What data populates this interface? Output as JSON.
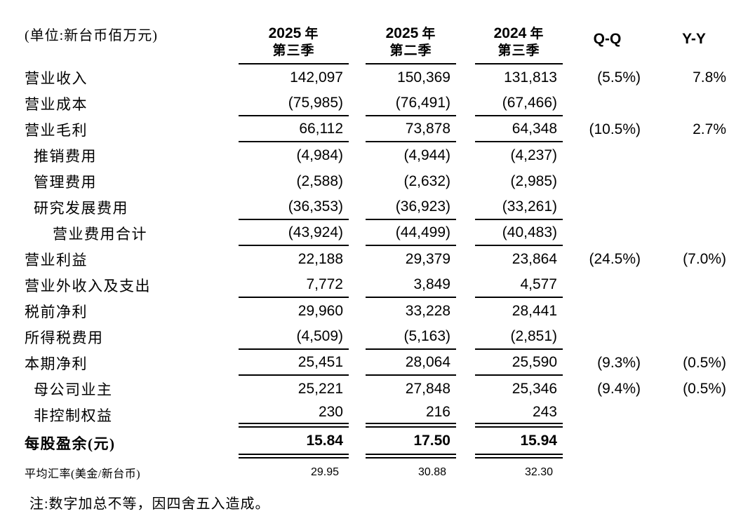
{
  "page": {
    "background": "#ffffff",
    "text_color": "#000000"
  },
  "header": {
    "unit_label": "(单位:新台币佰万元)",
    "columns": [
      {
        "year": "2025",
        "year_suffix": "年",
        "quarter": "第三季"
      },
      {
        "year": "2025",
        "year_suffix": "年",
        "quarter": "第二季"
      },
      {
        "year": "2024",
        "year_suffix": "年",
        "quarter": "第三季"
      }
    ],
    "qq_label": "Q-Q",
    "yy_label": "Y-Y"
  },
  "table": {
    "rows": [
      {
        "label": "营业收入",
        "q3_2025": "142,097",
        "q2_2025": "150,369",
        "q3_2024": "131,813",
        "qq": "(5.5%)",
        "yy": "7.8%",
        "indent": 0,
        "emphasis": false,
        "small": false,
        "rule_below": "none"
      },
      {
        "label": "营业成本",
        "q3_2025": "(75,985)",
        "q2_2025": "(76,491)",
        "q3_2024": "(67,466)",
        "qq": "",
        "yy": "",
        "indent": 0,
        "emphasis": false,
        "small": false,
        "rule_below": "single"
      },
      {
        "label": "营业毛利",
        "q3_2025": "66,112",
        "q2_2025": "73,878",
        "q3_2024": "64,348",
        "qq": "(10.5%)",
        "yy": "2.7%",
        "indent": 0,
        "emphasis": false,
        "small": false,
        "rule_below": "single"
      },
      {
        "label": "推销费用",
        "q3_2025": "(4,984)",
        "q2_2025": "(4,944)",
        "q3_2024": "(4,237)",
        "qq": "",
        "yy": "",
        "indent": 1,
        "emphasis": false,
        "small": false,
        "rule_below": "none"
      },
      {
        "label": "管理费用",
        "q3_2025": "(2,588)",
        "q2_2025": "(2,632)",
        "q3_2024": "(2,985)",
        "qq": "",
        "yy": "",
        "indent": 1,
        "emphasis": false,
        "small": false,
        "rule_below": "none"
      },
      {
        "label": "研究发展费用",
        "q3_2025": "(36,353)",
        "q2_2025": "(36,923)",
        "q3_2024": "(33,261)",
        "qq": "",
        "yy": "",
        "indent": 1,
        "emphasis": false,
        "small": false,
        "rule_below": "single"
      },
      {
        "label": "营业费用合计",
        "q3_2025": "(43,924)",
        "q2_2025": "(44,499)",
        "q3_2024": "(40,483)",
        "qq": "",
        "yy": "",
        "indent": 2,
        "emphasis": false,
        "small": false,
        "rule_below": "single"
      },
      {
        "label": "营业利益",
        "q3_2025": "22,188",
        "q2_2025": "29,379",
        "q3_2024": "23,864",
        "qq": "(24.5%)",
        "yy": "(7.0%)",
        "indent": 0,
        "emphasis": false,
        "small": false,
        "rule_below": "none"
      },
      {
        "label": "营业外收入及支出",
        "q3_2025": "7,772",
        "q2_2025": "3,849",
        "q3_2024": "4,577",
        "qq": "",
        "yy": "",
        "indent": 0,
        "emphasis": false,
        "small": false,
        "rule_below": "single"
      },
      {
        "label": "税前净利",
        "q3_2025": "29,960",
        "q2_2025": "33,228",
        "q3_2024": "28,441",
        "qq": "",
        "yy": "",
        "indent": 0,
        "emphasis": false,
        "small": false,
        "rule_below": "none"
      },
      {
        "label": "所得税费用",
        "q3_2025": "(4,509)",
        "q2_2025": "(5,163)",
        "q3_2024": "(2,851)",
        "qq": "",
        "yy": "",
        "indent": 0,
        "emphasis": false,
        "small": false,
        "rule_below": "single"
      },
      {
        "label": "本期净利",
        "q3_2025": "25,451",
        "q2_2025": "28,064",
        "q3_2024": "25,590",
        "qq": "(9.3%)",
        "yy": "(0.5%)",
        "indent": 0,
        "emphasis": false,
        "small": false,
        "rule_below": "single"
      },
      {
        "label": "母公司业主",
        "q3_2025": "25,221",
        "q2_2025": "27,848",
        "q3_2024": "25,346",
        "qq": "(9.4%)",
        "yy": "(0.5%)",
        "indent": 1,
        "emphasis": false,
        "small": false,
        "rule_below": "none"
      },
      {
        "label": "非控制权益",
        "q3_2025": "230",
        "q2_2025": "216",
        "q3_2024": "243",
        "qq": "",
        "yy": "",
        "indent": 1,
        "emphasis": false,
        "small": false,
        "rule_below": "double"
      },
      {
        "label": "每股盈余(元)",
        "q3_2025": "15.84",
        "q2_2025": "17.50",
        "q3_2024": "15.94",
        "qq": "",
        "yy": "",
        "indent": 0,
        "emphasis": true,
        "small": false,
        "rule_below": "double"
      },
      {
        "label": "平均汇率(美金/新台币)",
        "q3_2025": "29.95",
        "q2_2025": "30.88",
        "q3_2024": "32.30",
        "qq": "",
        "yy": "",
        "indent": 0,
        "emphasis": false,
        "small": true,
        "rule_below": "none"
      }
    ]
  },
  "footnote": "注:数字加总不等，因四舍五入造成。"
}
